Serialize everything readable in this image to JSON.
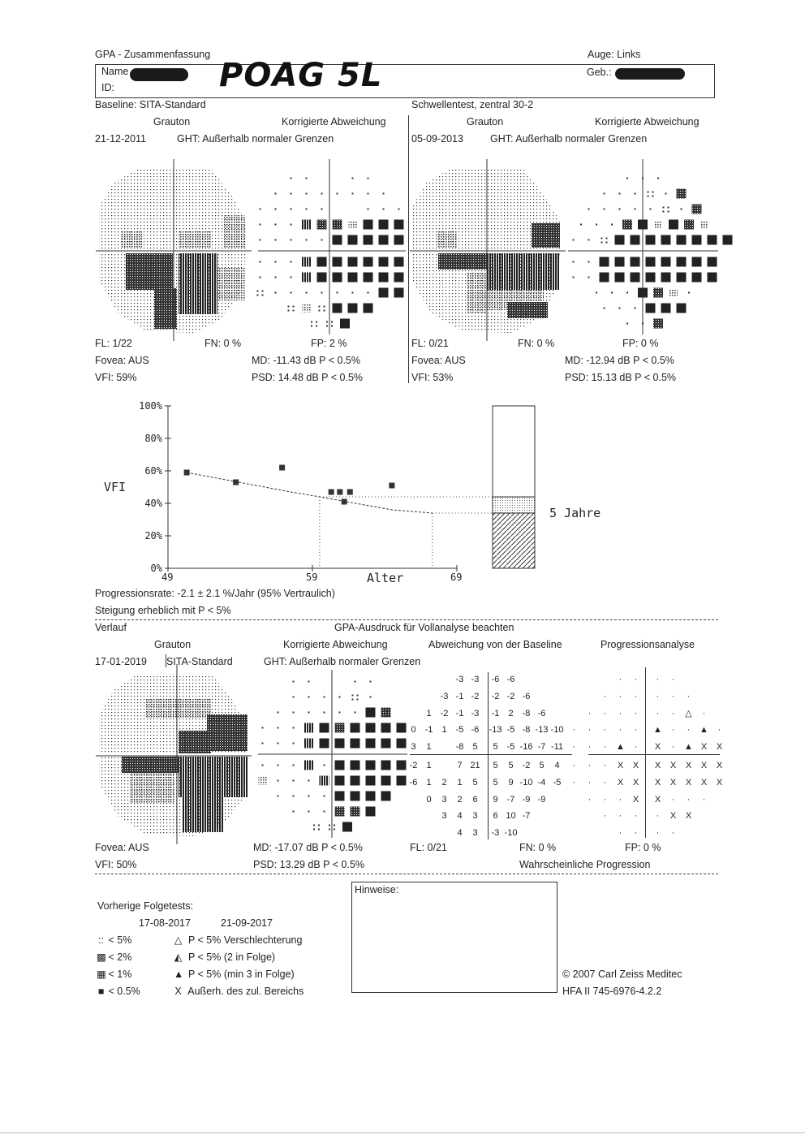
{
  "header": {
    "title": "GPA - Zusammenfassung",
    "eye": "Auge: Links",
    "name_label": "Name",
    "id_label": "ID:",
    "birth_label": "Geb.:",
    "handwritten": "POAG 5L"
  },
  "baseline": {
    "label": "Baseline: SITA-Standard",
    "test": "Schwellentest, zentral 30-2",
    "grauton": "Grauton",
    "korr": "Korrigierte Abweichung",
    "exam1": {
      "date": "21-12-2011",
      "ght": "GHT: Außerhalb normaler Grenzen",
      "fl": "FL: 1/22",
      "fn": "FN:  0 %",
      "fp": "FP:  2 %",
      "fovea": "Fovea: AUS",
      "md": "MD: -11.43 dB  P < 0.5%",
      "vfi": "VFI:  59%",
      "psd": "PSD:  14.48 dB  P < 0.5%"
    },
    "exam2": {
      "date": "05-09-2013",
      "ght": "GHT: Außerhalb normaler Grenzen",
      "fl": "FL: 0/21",
      "fn": "FN:  0 %",
      "fp": "FP:  0 %",
      "fovea": "Fovea: AUS",
      "md": "MD: -12.94 dB  P < 0.5%",
      "vfi": "VFI:  53%",
      "psd": "PSD:  15.13 dB  P < 0.5%"
    }
  },
  "chart_data": {
    "type": "scatter",
    "ylabel": "VFI",
    "xlabel": "Alter",
    "x_ticks": [
      "49",
      "59",
      "69"
    ],
    "y_ticks": [
      "0%",
      "20%",
      "40%",
      "60%",
      "80%",
      "100%"
    ],
    "xlim": [
      49,
      69
    ],
    "ylim": [
      0,
      100
    ],
    "points": [
      {
        "x": 50.3,
        "y": 59
      },
      {
        "x": 53.7,
        "y": 53
      },
      {
        "x": 56.9,
        "y": 62
      },
      {
        "x": 60.3,
        "y": 47
      },
      {
        "x": 60.9,
        "y": 47
      },
      {
        "x": 61.2,
        "y": 41
      },
      {
        "x": 61.6,
        "y": 47
      },
      {
        "x": 64.5,
        "y": 51
      }
    ],
    "trend": [
      [
        50.3,
        59
      ],
      [
        57.5,
        47
      ],
      [
        59.5,
        44
      ],
      [
        62,
        40
      ],
      [
        64.5,
        36
      ],
      [
        67.3,
        34
      ]
    ],
    "projection_years": "5 Jahre",
    "bar_levels": [
      44,
      34
    ]
  },
  "progress": {
    "rate": "Progressionsrate: -2.1 ± 2.1 %/Jahr (95% Vertraulich)",
    "significance": "Steigung erheblich mit P < 5%"
  },
  "verlauf": {
    "label": "Verlauf",
    "note": "GPA-Ausdruck für Vollanalyse beachten",
    "grauton": "Grauton",
    "korr": "Korrigierte Abweichung",
    "baseline_dev": "Abweichung von der Baseline",
    "prog": "Progressionsanalyse",
    "date": "17-01-2019",
    "strategy": "SITA-Standard",
    "ght": "GHT: Außerhalb normaler Grenzen",
    "fovea": "Fovea: AUS",
    "md": "MD: -17.07 dB  P < 0.5%",
    "fl": "FL: 0/21",
    "fn": "FN:  0 %",
    "fp": "FP:  0 %",
    "vfi": "VFI:  50%",
    "psd": "PSD:  13.29 dB  P < 0.5%",
    "result": "Wahrscheinliche Progression",
    "grid": [
      [
        "",
        "",
        "",
        "-3",
        "-3",
        "-6",
        "-6",
        "",
        "",
        ""
      ],
      [
        "",
        "",
        "-3",
        "-1",
        "-2",
        "-2",
        "-2",
        "-6",
        "",
        ""
      ],
      [
        "",
        "1",
        "-2",
        "-1",
        "-3",
        "-1",
        "2",
        "-8",
        "-6",
        ""
      ],
      [
        "0",
        "-1",
        "1",
        "-5",
        "-6",
        "-13",
        "-5",
        "-8",
        "-13",
        "-10"
      ],
      [
        "3",
        "1",
        "",
        "-8",
        "5",
        "5",
        "-5",
        "-16",
        "-7",
        "-11"
      ],
      [
        "-2",
        "1",
        "",
        "7",
        "21",
        "5",
        "5",
        "-2",
        "5",
        "4"
      ],
      [
        "-6",
        "1",
        "2",
        "1",
        "5",
        "5",
        "9",
        "-10",
        "-4",
        "-5"
      ],
      [
        "",
        "0",
        "3",
        "2",
        "6",
        "9",
        "-7",
        "-9",
        "-9",
        ""
      ],
      [
        "",
        "",
        "3",
        "4",
        "3",
        "6",
        "10",
        "-7",
        "",
        ""
      ],
      [
        "",
        "",
        "",
        "4",
        "3",
        "-3",
        "-10",
        "",
        "",
        ""
      ]
    ],
    "prog_grid": [
      [
        "",
        "",
        "",
        "·",
        "·",
        "·",
        "·",
        "",
        "",
        ""
      ],
      [
        "",
        "",
        "·",
        "·",
        "·",
        "·",
        "·",
        "·",
        "",
        ""
      ],
      [
        "",
        "·",
        "·",
        "·",
        "·",
        "·",
        "·",
        "△",
        "·",
        ""
      ],
      [
        "·",
        "·",
        "·",
        "·",
        "·",
        "▲",
        "·",
        "·",
        "▲",
        "·"
      ],
      [
        "·",
        "·",
        "·",
        "▲",
        "·",
        "X",
        "·",
        "▲",
        "X",
        "X"
      ],
      [
        "·",
        "·",
        "·",
        "X",
        "X",
        "X",
        "X",
        "X",
        "X",
        "X"
      ],
      [
        "·",
        "·",
        "·",
        "X",
        "X",
        "X",
        "X",
        "X",
        "X",
        "X"
      ],
      [
        "",
        "·",
        "·",
        "·",
        "X",
        "X",
        "·",
        "·",
        "·",
        ""
      ],
      [
        "",
        "",
        "·",
        "·",
        "·",
        "·",
        "X",
        "X",
        "",
        ""
      ],
      [
        "",
        "",
        "",
        "·",
        "·",
        "·",
        "·",
        "",
        "",
        ""
      ]
    ]
  },
  "footer": {
    "prev_label": "Vorherige Folgetests:",
    "prev_dates": [
      "17-08-2017",
      "21-09-2017"
    ],
    "notes_label": "Hinweise:",
    "legend": [
      {
        "sym": "::",
        "text": "< 5%"
      },
      {
        "sym": "▩",
        "text": "< 2%"
      },
      {
        "sym": "▦",
        "text": "< 1%"
      },
      {
        "sym": "■",
        "text": "< 0.5%"
      }
    ],
    "legend2": [
      {
        "sym": "△",
        "text": "P < 5% Verschlechterung"
      },
      {
        "sym": "◭",
        "text": "P < 5% (2 in Folge)"
      },
      {
        "sym": "▲",
        "text": "P < 5% (min 3 in Folge)"
      },
      {
        "sym": "X",
        "text": "Außerh. des zul. Bereichs"
      }
    ],
    "copyright": "© 2007 Carl Zeiss Meditec",
    "device": "HFA II 745-6976-4.2.2"
  }
}
